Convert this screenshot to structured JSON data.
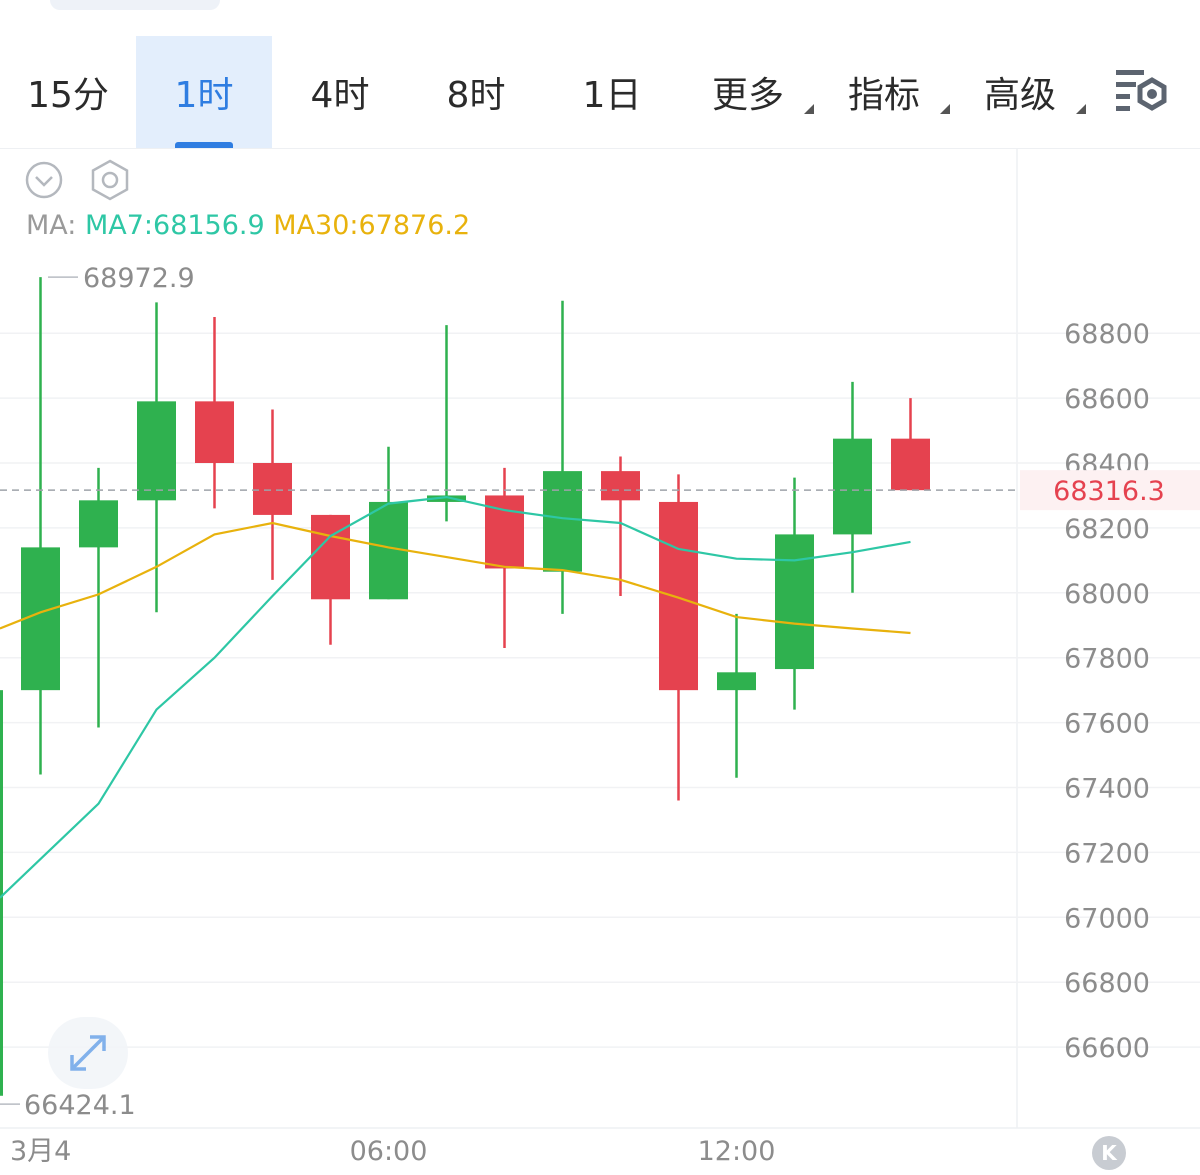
{
  "tabs": [
    {
      "label": "15分",
      "active": false,
      "dropdown": false
    },
    {
      "label": "1时",
      "active": true,
      "dropdown": false
    },
    {
      "label": "4时",
      "active": false,
      "dropdown": false
    },
    {
      "label": "8时",
      "active": false,
      "dropdown": false
    },
    {
      "label": "1日",
      "active": false,
      "dropdown": false
    },
    {
      "label": "更多",
      "active": false,
      "dropdown": true
    },
    {
      "label": "指标",
      "active": false,
      "dropdown": true
    },
    {
      "label": "高级",
      "active": false,
      "dropdown": true
    }
  ],
  "toolbar": {
    "settings_icon": "chart-settings-icon",
    "collapse_icon": "chevron-down-circle-icon",
    "gear_icon": "hexagon-gear-icon",
    "expand_icon": "expand-arrows-icon",
    "k_label": "K"
  },
  "ma": {
    "label": "MA:",
    "ma7": "MA7:68156.9",
    "ma30": "MA30:67876.2"
  },
  "colors": {
    "up": "#2fb14f",
    "down": "#e5424f",
    "ma7": "#2ec7a5",
    "ma30": "#e8b20d",
    "accent": "#2f7de1",
    "price_label": "#e5424f"
  },
  "chart_data": {
    "type": "candlestick",
    "title": "",
    "ylim": [
      66350,
      69150
    ],
    "yticks": [
      68800,
      68600,
      68400,
      68200,
      68000,
      67800,
      67600,
      67400,
      67200,
      67000,
      66800,
      66600
    ],
    "xticks": [
      "3月4",
      "06:00",
      "12:00"
    ],
    "xtick_positions": [
      0,
      6,
      12
    ],
    "current_price": 68316.3,
    "current_price_label": "68316.3",
    "high_label": "68972.9",
    "low_label": "66424.1",
    "partial_left_candle": {
      "open": 66450,
      "close": 67700,
      "high": 67700,
      "low": 66424.1
    },
    "candles": [
      {
        "t": 0,
        "open": 67700,
        "close": 68140,
        "high": 68972.9,
        "low": 67440
      },
      {
        "t": 1,
        "open": 68140,
        "close": 68285,
        "high": 68385,
        "low": 67585
      },
      {
        "t": 2,
        "open": 68285,
        "close": 68590,
        "high": 68895,
        "low": 67940
      },
      {
        "t": 3,
        "open": 68590,
        "close": 68400,
        "high": 68850,
        "low": 68260
      },
      {
        "t": 4,
        "open": 68400,
        "close": 68240,
        "high": 68565,
        "low": 68040
      },
      {
        "t": 5,
        "open": 68240,
        "close": 67980,
        "high": 68240,
        "low": 67840
      },
      {
        "t": 6,
        "open": 67980,
        "close": 68280,
        "high": 68450,
        "low": 67980
      },
      {
        "t": 7,
        "open": 68280,
        "close": 68300,
        "high": 68825,
        "low": 68220
      },
      {
        "t": 8,
        "open": 68300,
        "close": 68075,
        "high": 68385,
        "low": 67830
      },
      {
        "t": 9,
        "open": 68065,
        "close": 68375,
        "high": 68900,
        "low": 67935
      },
      {
        "t": 10,
        "open": 68375,
        "close": 68285,
        "high": 68420,
        "low": 67990
      },
      {
        "t": 11,
        "open": 68280,
        "close": 67700,
        "high": 68365,
        "low": 67360
      },
      {
        "t": 12,
        "open": 67700,
        "close": 67755,
        "high": 67935,
        "low": 67430
      },
      {
        "t": 13,
        "open": 67765,
        "close": 68180,
        "high": 68355,
        "low": 67640
      },
      {
        "t": 14,
        "open": 68180,
        "close": 68475,
        "high": 68650,
        "low": 68000
      },
      {
        "t": 15,
        "open": 68475,
        "close": 68316.3,
        "high": 68600,
        "low": 68316.3
      }
    ],
    "ma7": [
      {
        "t": -0.7,
        "v": 67060
      },
      {
        "t": 1,
        "v": 67350
      },
      {
        "t": 2,
        "v": 67640
      },
      {
        "t": 3,
        "v": 67800
      },
      {
        "t": 4,
        "v": 67990
      },
      {
        "t": 5,
        "v": 68175
      },
      {
        "t": 6,
        "v": 68275
      },
      {
        "t": 7,
        "v": 68295
      },
      {
        "t": 8,
        "v": 68255
      },
      {
        "t": 9,
        "v": 68230
      },
      {
        "t": 10,
        "v": 68215
      },
      {
        "t": 11,
        "v": 68135
      },
      {
        "t": 12,
        "v": 68105
      },
      {
        "t": 13,
        "v": 68100
      },
      {
        "t": 14,
        "v": 68125
      },
      {
        "t": 15,
        "v": 68156.9
      }
    ],
    "ma30": [
      {
        "t": -0.7,
        "v": 67890
      },
      {
        "t": 0,
        "v": 67940
      },
      {
        "t": 1,
        "v": 67995
      },
      {
        "t": 2,
        "v": 68080
      },
      {
        "t": 3,
        "v": 68180
      },
      {
        "t": 4,
        "v": 68215
      },
      {
        "t": 5,
        "v": 68175
      },
      {
        "t": 6,
        "v": 68140
      },
      {
        "t": 7,
        "v": 68110
      },
      {
        "t": 8,
        "v": 68080
      },
      {
        "t": 9,
        "v": 68070
      },
      {
        "t": 10,
        "v": 68040
      },
      {
        "t": 11,
        "v": 67985
      },
      {
        "t": 12,
        "v": 67925
      },
      {
        "t": 13,
        "v": 67905
      },
      {
        "t": 14,
        "v": 67890
      },
      {
        "t": 15,
        "v": 67876.2
      }
    ],
    "grid": true,
    "legend": "top-left"
  }
}
